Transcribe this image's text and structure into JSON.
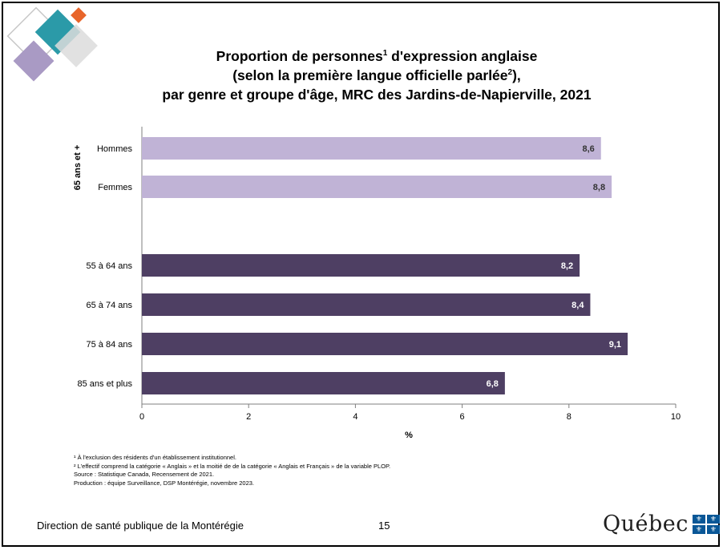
{
  "title": {
    "line1_prefix": "Proportion de personnes",
    "line1_sup": "1",
    "line1_suffix": " d'expression anglaise",
    "line2_prefix": "(selon la première langue officielle parlée",
    "line2_sup": "2",
    "line2_suffix": "),",
    "line3": "par genre et groupe d'âge, MRC des Jardins-de-Napierville, 2021"
  },
  "chart_data": {
    "type": "bar",
    "orientation": "horizontal",
    "groups": [
      {
        "label": "65 ans et +",
        "color": "#c0b3d6",
        "categories": [
          "Hommes",
          "Femmes"
        ],
        "values": [
          8.6,
          8.8
        ],
        "value_labels": [
          "8,6",
          "8,8"
        ]
      },
      {
        "label": "",
        "color": "#4e3f63",
        "categories": [
          "55 à 64 ans",
          "65 à 74 ans",
          "75 à 84 ans",
          "85 ans et plus"
        ],
        "values": [
          8.2,
          8.4,
          9.1,
          6.8
        ],
        "value_labels": [
          "8,2",
          "8,4",
          "9,1",
          "6,8"
        ]
      }
    ],
    "xlabel": "%",
    "xlim": [
      0,
      10
    ],
    "xticks": [
      0,
      2,
      4,
      6,
      8,
      10
    ],
    "grid": false,
    "legend": "none"
  },
  "notes": [
    "¹ À l'exclusion des résidents d'un établissement institutionnel.",
    "² L'effectif comprend la catégorie « Anglais » et la moitié de de la catégorie « Anglais et Français » de la variable PLOP.",
    "Source : Statistique Canada, Recensement de 2021.",
    "Production : équipe Surveillance, DSP Montérégie, novembre 2023."
  ],
  "footer": {
    "organization": "Direction de santé publique de la Montérégie",
    "page_number": "15",
    "logo_text": "Québec",
    "logo_symbol": "⚜"
  },
  "colors": {
    "light_bar": "#c0b3d6",
    "dark_bar": "#4e3f63",
    "deco_teal": "#2b9aa8",
    "deco_orange": "#e8652a",
    "deco_purple": "#a99ac4",
    "quebec_blue": "#095797"
  }
}
